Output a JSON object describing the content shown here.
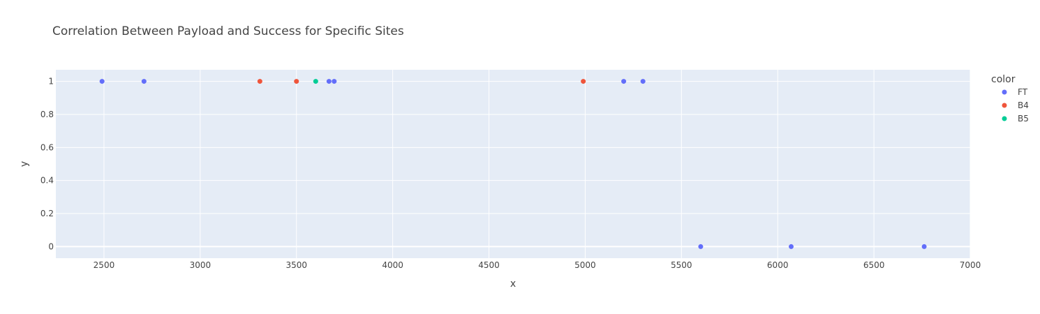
{
  "chart_data": {
    "type": "scatter",
    "title": "Correlation Between Payload and Success for Specific Sites",
    "xlabel": "x",
    "ylabel": "y",
    "xlim": [
      2250,
      7000
    ],
    "ylim": [
      -0.07,
      1.07
    ],
    "x_ticks": [
      2500,
      3000,
      3500,
      4000,
      4500,
      5000,
      5500,
      6000,
      6500,
      7000
    ],
    "y_ticks": [
      0,
      0.2,
      0.4,
      0.6,
      0.8,
      1
    ],
    "x_tick_labels": [
      "2500",
      "3000",
      "3500",
      "4000",
      "4500",
      "5000",
      "5500",
      "6000",
      "6500",
      "7000"
    ],
    "y_tick_labels": [
      "0",
      "0.2",
      "0.4",
      "0.6",
      "0.8",
      "1"
    ],
    "grid": true,
    "legend": {
      "title": "color",
      "position": "right"
    },
    "series": [
      {
        "name": "FT",
        "color": "#636efa",
        "points": [
          {
            "x": 2490,
            "y": 1
          },
          {
            "x": 2708,
            "y": 1
          },
          {
            "x": 3669,
            "y": 1
          },
          {
            "x": 3696,
            "y": 1
          },
          {
            "x": 5200,
            "y": 1
          },
          {
            "x": 5300,
            "y": 1
          },
          {
            "x": 5600,
            "y": 0
          },
          {
            "x": 6070,
            "y": 0
          },
          {
            "x": 6761,
            "y": 0
          }
        ]
      },
      {
        "name": "B4",
        "color": "#ef553b",
        "points": [
          {
            "x": 3310,
            "y": 1
          },
          {
            "x": 3500,
            "y": 1
          },
          {
            "x": 4990,
            "y": 1
          }
        ]
      },
      {
        "name": "B5",
        "color": "#00cc96",
        "points": [
          {
            "x": 3600,
            "y": 1
          }
        ]
      }
    ]
  }
}
